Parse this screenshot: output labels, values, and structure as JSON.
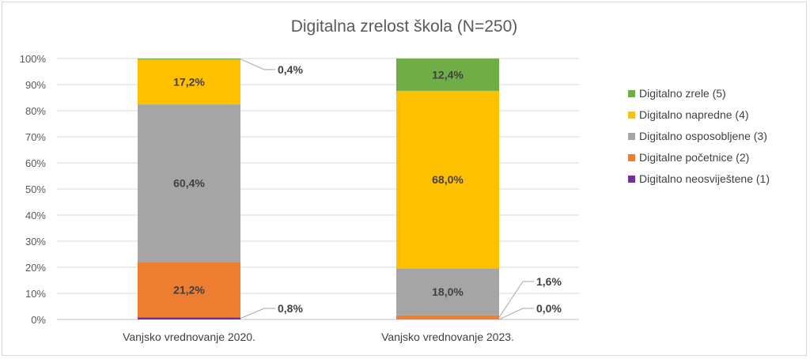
{
  "chart_data": {
    "type": "bar",
    "stacked": true,
    "title": "Digitalna zrelost škola (N=250)",
    "xlabel": "",
    "ylabel": "",
    "ylim": [
      0,
      100
    ],
    "yticks": [
      "0%",
      "10%",
      "20%",
      "30%",
      "40%",
      "50%",
      "60%",
      "70%",
      "80%",
      "90%",
      "100%"
    ],
    "categories": [
      "Vanjsko vrednovanje 2020.",
      "Vanjsko vrednovanje 2023."
    ],
    "series": [
      {
        "name": "Digitalno neosviještene (1)",
        "color": "#7030a0",
        "values": [
          0.8,
          0.0
        ],
        "labels": [
          "0,8%",
          "0,0%"
        ]
      },
      {
        "name": "Digitalne početnice (2)",
        "color": "#ed7d31",
        "values": [
          21.2,
          1.6
        ],
        "labels": [
          "21,2%",
          "1,6%"
        ]
      },
      {
        "name": "Digitalno osposobljene (3)",
        "color": "#a5a5a5",
        "values": [
          60.4,
          18.0
        ],
        "labels": [
          "60,4%",
          "18,0%"
        ]
      },
      {
        "name": "Digitalno napredne (4)",
        "color": "#ffc000",
        "values": [
          17.2,
          68.0
        ],
        "labels": [
          "17,2%",
          "68,0%"
        ]
      },
      {
        "name": "Digitalno zrele (5)",
        "color": "#70ad47",
        "values": [
          0.4,
          12.4
        ],
        "labels": [
          "0,4%",
          "12,4%"
        ]
      }
    ],
    "grid": true,
    "legend_position": "right"
  }
}
